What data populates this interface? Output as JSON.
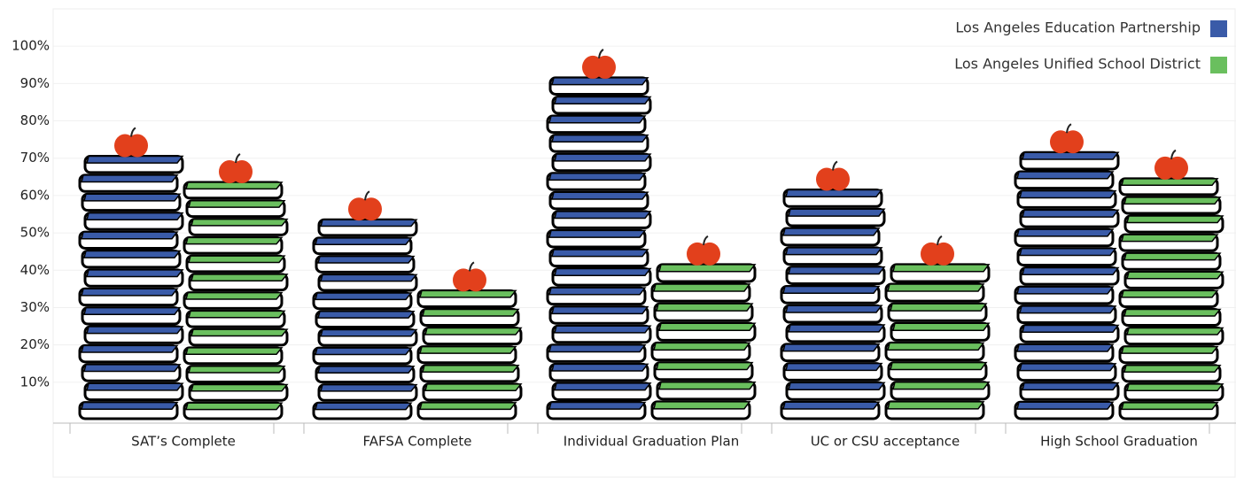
{
  "chart_data": {
    "type": "pictograph-bar",
    "categories": [
      "SAT’s Complete",
      "FAFSA Complete",
      "Individual Graduation Plan",
      "UC or CSU acceptance",
      "High School Graduation"
    ],
    "series": [
      {
        "name": "Los Angeles Education Partnership",
        "color": "#3a5ba8",
        "values": [
          71,
          54,
          92,
          62,
          72
        ]
      },
      {
        "name": "Los Angeles Unified School District",
        "color": "#6abf5e",
        "values": [
          64,
          35,
          42,
          42,
          65
        ]
      }
    ],
    "ylim": [
      0,
      110
    ],
    "yticks": [
      {
        "value": 10,
        "label": "10%"
      },
      {
        "value": 20,
        "label": "20%"
      },
      {
        "value": 30,
        "label": "30%"
      },
      {
        "value": 40,
        "label": "40%"
      },
      {
        "value": 50,
        "label": "50%"
      },
      {
        "value": 60,
        "label": "60%"
      },
      {
        "value": 70,
        "label": "70%"
      },
      {
        "value": 80,
        "label": "80%"
      },
      {
        "value": 90,
        "label": "90%"
      },
      {
        "value": 100,
        "label": "100%"
      }
    ],
    "grid": true,
    "legend": "top-right"
  }
}
